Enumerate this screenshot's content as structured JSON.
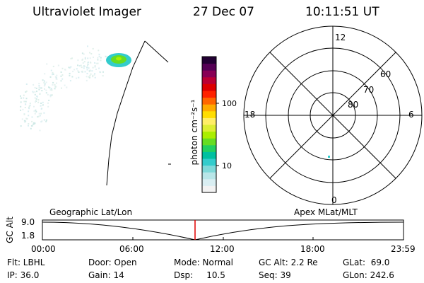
{
  "header": {
    "title": "Ultraviolet Imager",
    "date": "27 Dec 07",
    "time": "10:11:51 UT"
  },
  "colorbar": {
    "axis_label": "photon cm⁻²s⁻¹",
    "ticks": [
      {
        "label": "100",
        "value": 100
      },
      {
        "label": "10",
        "value": 10
      }
    ],
    "colors": [
      "#f2f2f2",
      "#d9eef2",
      "#b8e6e8",
      "#7fd9d9",
      "#33cccc",
      "#00c0a0",
      "#22d060",
      "#66dd22",
      "#aaee00",
      "#ddee33",
      "#ffee66",
      "#ffdd00",
      "#ffaa00",
      "#ff6600",
      "#ff2200",
      "#dd0000",
      "#bb0033",
      "#880055",
      "#550055",
      "#220033"
    ]
  },
  "polar_plot": {
    "hour_labels": {
      "top": "12",
      "bottom": "0",
      "left": "18",
      "right": "6"
    },
    "lat_labels": [
      "60",
      "70",
      "80"
    ]
  },
  "timeline": {
    "left_label": "Geographic Lat/Lon",
    "right_label": "Apex MLat/MLT",
    "y_axis_label": "GC Alt",
    "y_ticks": [
      "9.0",
      "1.8"
    ],
    "x_ticks": [
      "00:00",
      "06:00",
      "12:00",
      "18:00",
      "23:59"
    ]
  },
  "info": {
    "flt": "Flt: LBHL",
    "ip": "IP: 36.0",
    "door": "Door: Open",
    "gain": "Gain: 14",
    "mode": "Mode: Normal",
    "dsp": "Dsp:     10.5",
    "gc_alt": "GC Alt: 2.2 Re",
    "seq": "Seq: 39",
    "glat": "GLat:  69.0",
    "glon": "GLon: 242.6"
  }
}
